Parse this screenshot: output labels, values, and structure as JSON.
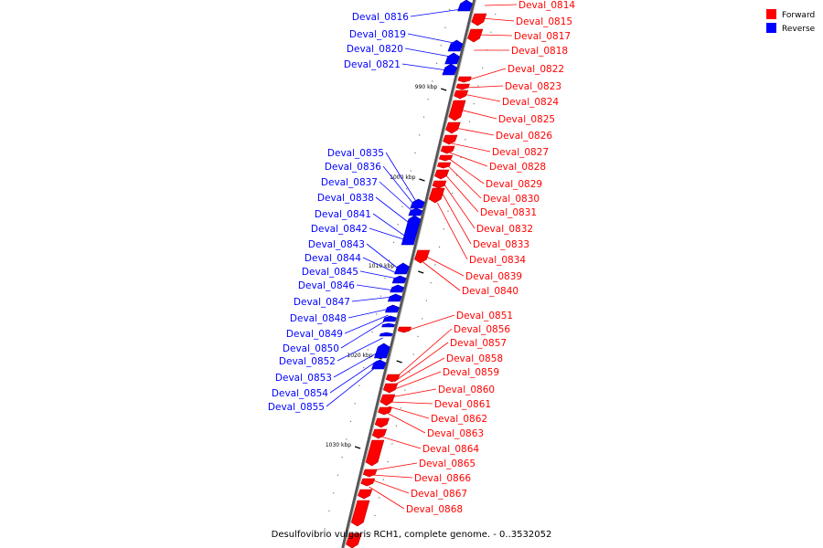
{
  "caption": "Desulfovibrio vulgaris RCH1, complete genome. - 0..3532052",
  "legend": [
    {
      "label": "Forward",
      "color": "#ff0000"
    },
    {
      "label": "Reverse",
      "color": "#0000ff"
    }
  ],
  "ticks": [
    "990 kbp",
    "1000 kbp",
    "1010 kbp",
    "1020 kbp",
    "1030 kbp"
  ],
  "genes": {
    "forward": [
      "Deval_0814",
      "Deval_0815",
      "Deval_0817",
      "Deval_0818",
      "Deval_0822",
      "Deval_0823",
      "Deval_0824",
      "Deval_0825",
      "Deval_0826",
      "Deval_0827",
      "Deval_0828",
      "Deval_0829",
      "Deval_0830",
      "Deval_0831",
      "Deval_0832",
      "Deval_0833",
      "Deval_0834",
      "Deval_0839",
      "Deval_0840",
      "Deval_0851",
      "Deval_0856",
      "Deval_0857",
      "Deval_0858",
      "Deval_0859",
      "Deval_0860",
      "Deval_0861",
      "Deval_0862",
      "Deval_0863",
      "Deval_0864",
      "Deval_0865",
      "Deval_0866",
      "Deval_0867",
      "Deval_0868"
    ],
    "reverse": [
      "Deval_0816",
      "Deval_0819",
      "Deval_0820",
      "Deval_0821",
      "Deval_0835",
      "Deval_0836",
      "Deval_0837",
      "Deval_0838",
      "Deval_0841",
      "Deval_0842",
      "Deval_0843",
      "Deval_0844",
      "Deval_0845",
      "Deval_0846",
      "Deval_0847",
      "Deval_0848",
      "Deval_0849",
      "Deval_0850",
      "Deval_0852",
      "Deval_0853",
      "Deval_0854",
      "Deval_0855"
    ]
  }
}
